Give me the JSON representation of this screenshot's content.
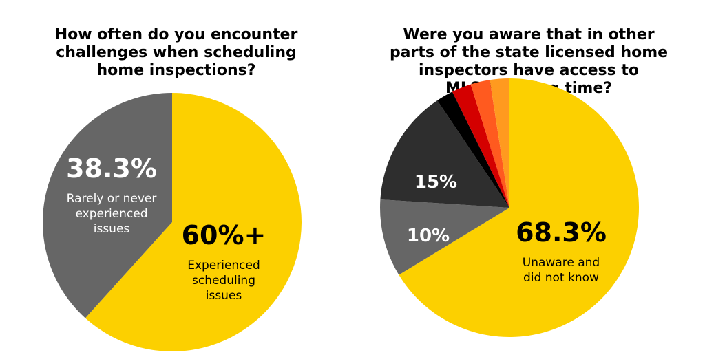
{
  "chart_data": [
    {
      "type": "pie",
      "title": "How often do you encounter challenges when scheduling home inspections?",
      "slices": [
        {
          "value": 61.7,
          "label": "60%+",
          "sublabel": "Experienced scheduling issues",
          "color": "#FCD000",
          "text_color": "#000000"
        },
        {
          "value": 38.3,
          "label": "38.3%",
          "sublabel": "Rarely or never experienced issues",
          "color": "#666666",
          "text_color": "#FFFFFF"
        }
      ]
    },
    {
      "type": "pie",
      "title": "Were you aware that in other parts of the state licensed home inspectors have access to MLS/Showing time?",
      "slices": [
        {
          "value": 68.3,
          "label": "68.3%",
          "sublabel": "Unaware and did not know",
          "color": "#FCD000",
          "text_color": "#000000"
        },
        {
          "value": 10,
          "label": "10%",
          "sublabel": "",
          "color": "#666666",
          "text_color": "#FFFFFF"
        },
        {
          "value": 15,
          "label": "15%",
          "sublabel": "",
          "color": "#2E2E2E",
          "text_color": "#FFFFFF"
        },
        {
          "value": 2.2,
          "label": "",
          "sublabel": "",
          "color": "#000000",
          "text_color": "#FFFFFF"
        },
        {
          "value": 2.5,
          "label": "",
          "sublabel": "",
          "color": "#D40000",
          "text_color": "#FFFFFF"
        },
        {
          "value": 2.5,
          "label": "",
          "sublabel": "",
          "color": "#FF5A1F",
          "text_color": "#FFFFFF"
        },
        {
          "value": 2.5,
          "label": "",
          "sublabel": "",
          "color": "#FF9A1F",
          "text_color": "#FFFFFF"
        }
      ]
    }
  ]
}
